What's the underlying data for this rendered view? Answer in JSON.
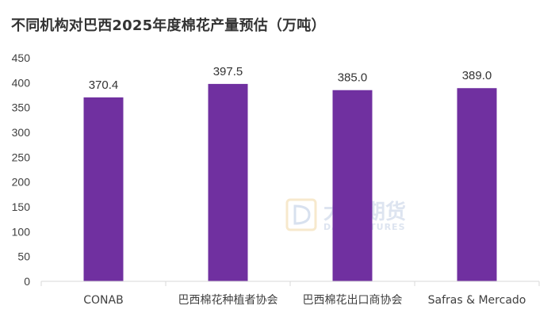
{
  "chart_data": {
    "type": "bar",
    "title": "不同机构对巴西2025年度棉花产量预估（万吨）",
    "categories": [
      "CONAB",
      "巴西棉花种植者协会",
      "巴西棉花出口商协会",
      "Safras & Mercado"
    ],
    "values": [
      370.4,
      397.5,
      385.0,
      389.0
    ],
    "data_labels": [
      "370.4",
      "397.5",
      "385.0",
      "389.0"
    ],
    "ylim": [
      0,
      450
    ],
    "yticks": [
      0,
      50,
      100,
      150,
      200,
      250,
      300,
      350,
      400,
      450
    ],
    "xlabel": "",
    "ylabel": "",
    "grid": false,
    "legend": "none",
    "bar_color": "#7030a0"
  },
  "watermark": {
    "cn": "大地期货",
    "en": "DADI FUTURES"
  }
}
